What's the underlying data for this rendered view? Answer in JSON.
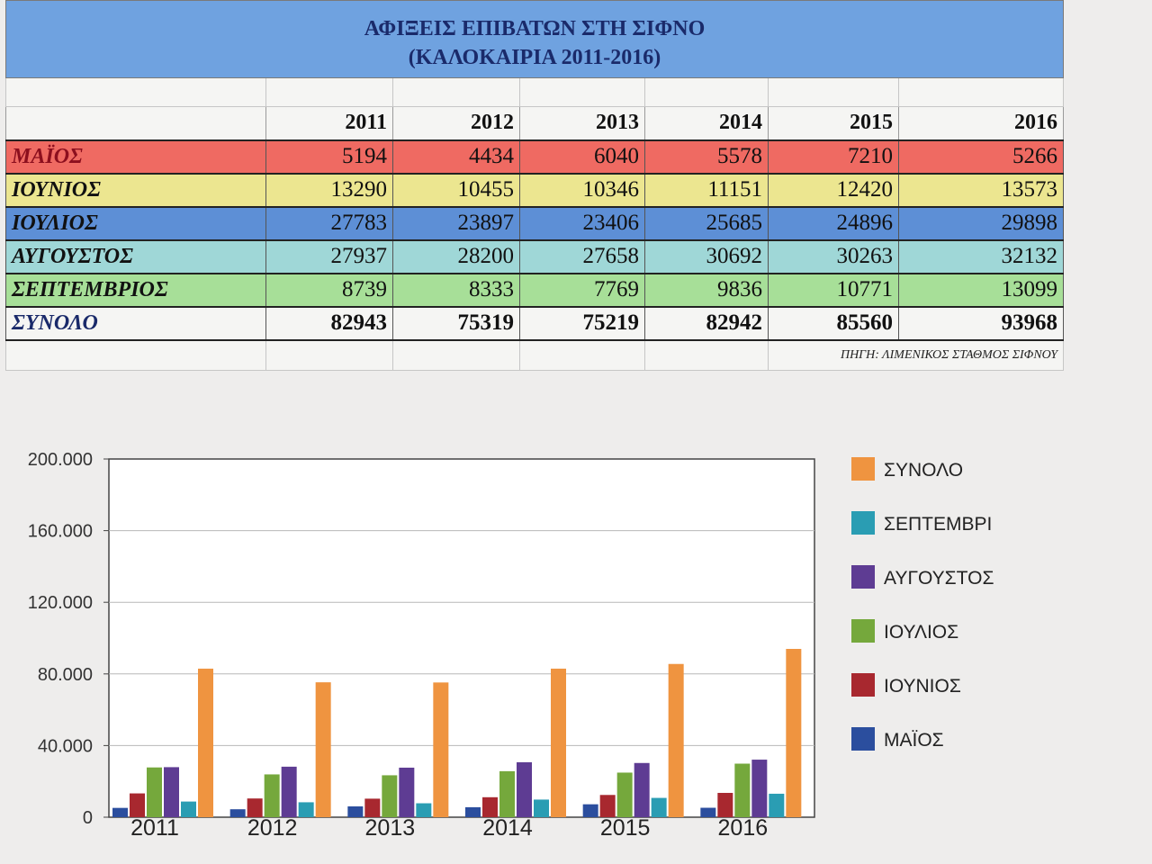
{
  "table": {
    "title_line1": "ΑΦΙΞΕΙΣ ΕΠΙΒΑΤΩΝ ΣΤΗ ΣΙΦΝΟ",
    "title_line2": "(ΚΑΛΟΚΑΙΡΙΑ 2011-2016)",
    "years": [
      "2011",
      "2012",
      "2013",
      "2014",
      "2015",
      "2016"
    ],
    "rows": [
      {
        "label": "ΜΑΪΟΣ",
        "values": [
          "5194",
          "4434",
          "6040",
          "5578",
          "7210",
          "5266"
        ]
      },
      {
        "label": "ΙΟΥΝΙΟΣ",
        "values": [
          "13290",
          "10455",
          "10346",
          "11151",
          "12420",
          "13573"
        ]
      },
      {
        "label": "ΙΟΥΛΙΟΣ",
        "values": [
          "27783",
          "23897",
          "23406",
          "25685",
          "24896",
          "29898"
        ]
      },
      {
        "label": "ΑΥΓΟΥΣΤΟΣ",
        "values": [
          "27937",
          "28200",
          "27658",
          "30692",
          "30263",
          "32132"
        ]
      },
      {
        "label": "ΣΕΠΤΕΜΒΡΙΟΣ",
        "values": [
          "8739",
          "8333",
          "7769",
          "9836",
          "10771",
          "13099"
        ]
      }
    ],
    "total": {
      "label": "ΣΥΝΟΛΟ",
      "values": [
        "82943",
        "75319",
        "75219",
        "82942",
        "85560",
        "93968"
      ]
    },
    "source": "ΠΗΓΗ: ΛΙΜΕΝΙΚΟΣ ΣΤΑΘΜΟΣ ΣΙΦΝΟΥ"
  },
  "colors": {
    "row_bg": [
      "#ef6a62",
      "#ece690",
      "#5d8fd6",
      "#9fd7d7",
      "#a7df98"
    ],
    "row_label": [
      "#8c0f1e",
      "#111111",
      "#111111",
      "#111111",
      "#111111"
    ]
  },
  "chart_data": {
    "type": "bar",
    "categories": [
      "2011",
      "2012",
      "2013",
      "2014",
      "2015",
      "2016"
    ],
    "ylim": [
      0,
      200000
    ],
    "yticks": [
      0,
      40000,
      80000,
      120000,
      160000,
      200000
    ],
    "ytick_labels": [
      "0",
      "40.000",
      "80.000",
      "120.000",
      "160.000",
      "200.000"
    ],
    "series": [
      {
        "name": "ΜΑΪΟΣ",
        "color": "#2b4e9e",
        "values": [
          5194,
          4434,
          6040,
          5578,
          7210,
          5266
        ]
      },
      {
        "name": "ΙΟΥΝΙΟΣ",
        "color": "#a8282f",
        "values": [
          13290,
          10455,
          10346,
          11151,
          12420,
          13573
        ]
      },
      {
        "name": "ΙΟΥΛΙΟΣ",
        "color": "#75a83c",
        "values": [
          27783,
          23897,
          23406,
          25685,
          24896,
          29898
        ]
      },
      {
        "name": "ΑΥΓΟΥΣΤΟΣ",
        "color": "#5e3c93",
        "values": [
          27937,
          28200,
          27658,
          30692,
          30263,
          32132
        ]
      },
      {
        "name": "ΣΕΠΤΕΜΒΡΙ",
        "color": "#2a9db3",
        "values": [
          8739,
          8333,
          7769,
          9836,
          10771,
          13099
        ]
      },
      {
        "name": "ΣΥΝΟΛΟ",
        "color": "#ef9440",
        "values": [
          82943,
          75319,
          75219,
          82942,
          85560,
          93968
        ]
      }
    ],
    "legend_order": [
      "ΣΥΝΟΛΟ",
      "ΣΕΠΤΕΜΒΡΙ",
      "ΑΥΓΟΥΣΤΟΣ",
      "ΙΟΥΛΙΟΣ",
      "ΙΟΥΝΙΟΣ",
      "ΜΑΪΟΣ"
    ],
    "legend_position": "right"
  }
}
